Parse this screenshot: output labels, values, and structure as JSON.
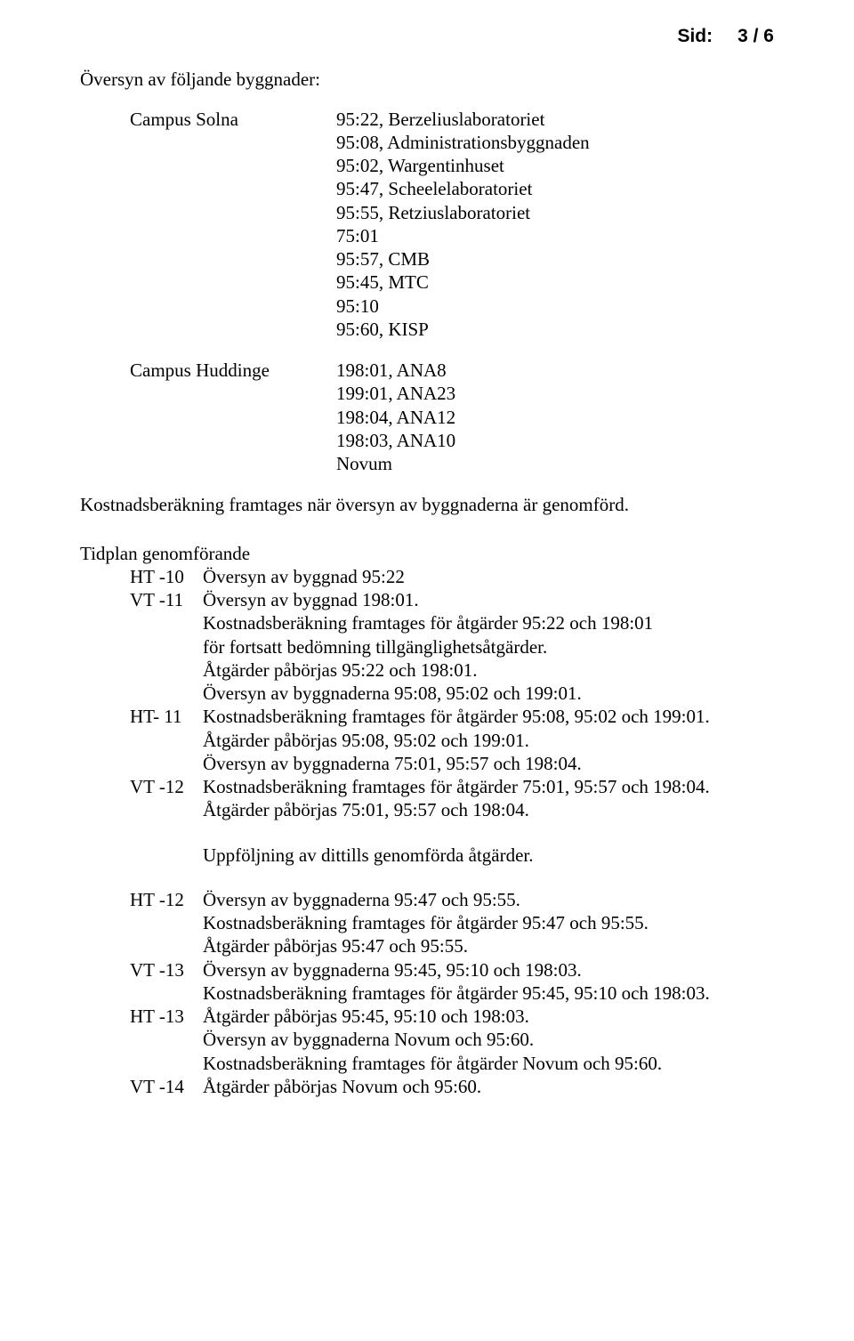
{
  "header": {
    "label": "Sid:",
    "page": "3 / 6"
  },
  "title": "Översyn av följande byggnader:",
  "groups": [
    {
      "name": "Campus Solna",
      "items": [
        "95:22, Berzeliuslaboratoriet",
        "95:08, Administrationsbyggnaden",
        "95:02, Wargentinhuset",
        "95:47, Scheelelaboratoriet",
        "95:55, Retziuslaboratoriet",
        "75:01",
        "95:57, CMB",
        "95:45, MTC",
        "95:10",
        "95:60, KISP"
      ]
    },
    {
      "name": "Campus Huddinge",
      "items": [
        "198:01, ANA8",
        "199:01, ANA23",
        "198:04, ANA12",
        "198:03, ANA10",
        "Novum"
      ]
    }
  ],
  "note": "Kostnadsberäkning framtages när översyn av byggnaderna är genomförd.",
  "timeline_title": "Tidplan genomförande",
  "timeline": [
    {
      "tag": "HT -10",
      "lines": [
        "Översyn av byggnad 95:22"
      ]
    },
    {
      "tag": "VT -11",
      "lines": [
        "Översyn av byggnad 198:01.",
        "Kostnadsberäkning framtages för åtgärder 95:22 och 198:01",
        "för fortsatt bedömning tillgänglighetsåtgärder.",
        "Åtgärder påbörjas 95:22 och 198:01.",
        "Översyn av byggnaderna 95:08, 95:02 och 199:01."
      ]
    },
    {
      "tag": "HT- 11",
      "lines": [
        "Kostnadsberäkning framtages för åtgärder 95:08, 95:02 och 199:01.",
        "Åtgärder påbörjas 95:08, 95:02 och 199:01.",
        "Översyn av byggnaderna 75:01, 95:57 och 198:04."
      ]
    },
    {
      "tag": "VT -12",
      "lines": [
        "Kostnadsberäkning framtages för åtgärder 75:01, 95:57 och 198:04.",
        "Åtgärder påbörjas 75:01, 95:57 och 198:04."
      ]
    }
  ],
  "followup": "Uppföljning av dittills genomförda åtgärder.",
  "timeline2": [
    {
      "tag": "HT -12",
      "lines": [
        "Översyn av byggnaderna 95:47 och 95:55.",
        "Kostnadsberäkning framtages för åtgärder 95:47 och 95:55.",
        "Åtgärder påbörjas 95:47 och 95:55."
      ]
    },
    {
      "tag": "VT -13",
      "lines": [
        "Översyn av byggnaderna 95:45, 95:10 och 198:03.",
        "Kostnadsberäkning framtages för åtgärder 95:45, 95:10 och 198:03."
      ]
    },
    {
      "tag": "HT -13",
      "lines": [
        "Åtgärder påbörjas 95:45, 95:10 och 198:03.",
        "Översyn av byggnaderna Novum och 95:60.",
        "Kostnadsberäkning framtages för åtgärder Novum och 95:60."
      ]
    },
    {
      "tag": "VT -14",
      "lines": [
        "Åtgärder påbörjas Novum och 95:60."
      ]
    }
  ]
}
